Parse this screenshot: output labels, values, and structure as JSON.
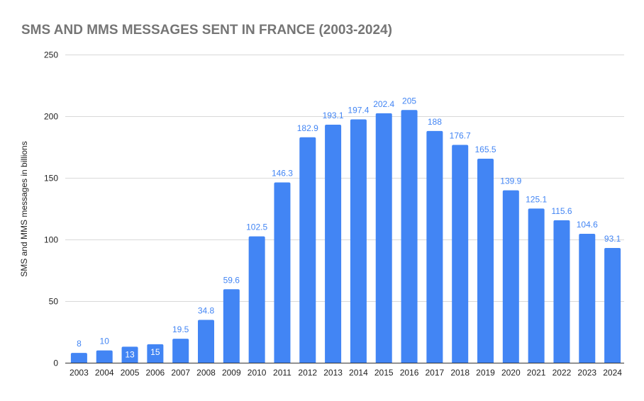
{
  "chart_data": {
    "type": "bar",
    "title": "SMS AND MMS MESSAGES SENT IN FRANCE (2003-2024)",
    "xlabel": "",
    "ylabel": "SMS and MMS messages in billions",
    "ylim": [
      0,
      250
    ],
    "yticks": [
      0,
      50,
      100,
      150,
      200,
      250
    ],
    "grid": true,
    "legend": "none",
    "categories": [
      "2003",
      "2004",
      "2005",
      "2006",
      "2007",
      "2008",
      "2009",
      "2010",
      "2011",
      "2012",
      "2013",
      "2014",
      "2015",
      "2016",
      "2017",
      "2018",
      "2019",
      "2020",
      "2021",
      "2022",
      "2023",
      "2024"
    ],
    "values": [
      8,
      10,
      13,
      15,
      19.5,
      34.8,
      59.6,
      102.5,
      146.3,
      182.9,
      193.1,
      197.4,
      202.4,
      205,
      188,
      176.7,
      165.5,
      139.9,
      125.1,
      115.6,
      104.6,
      93.1
    ],
    "data_labels": [
      "8",
      "10",
      "13",
      "15",
      "19.5",
      "34.8",
      "59.6",
      "102.5",
      "146.3",
      "182.9",
      "193.1",
      "197.4",
      "202.4",
      "205",
      "188",
      "176.7",
      "165.5",
      "139.9",
      "125.1",
      "115.6",
      "104.6",
      "93.1"
    ],
    "colors": {
      "bar": "#4285f4",
      "label": "#4285f4",
      "title": "#757575",
      "grid": "#d9d9d9",
      "axis": "#333333"
    }
  }
}
